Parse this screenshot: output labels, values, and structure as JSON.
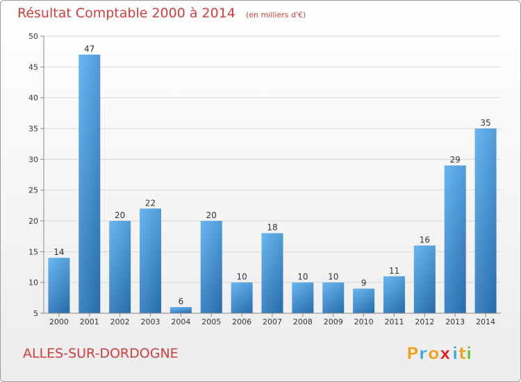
{
  "chart_data": {
    "type": "bar",
    "title": "Résultat Comptable 2000 à 2014",
    "subtitle": "(en milliers d'€)",
    "categories": [
      "2000",
      "2001",
      "2002",
      "2003",
      "2004",
      "2005",
      "2006",
      "2007",
      "2008",
      "2009",
      "2010",
      "2011",
      "2012",
      "2013",
      "2014"
    ],
    "values": [
      14,
      47,
      20,
      22,
      6,
      20,
      10,
      18,
      10,
      10,
      9,
      11,
      16,
      29,
      35
    ],
    "value_labels": [
      "14",
      "47",
      "20",
      "22",
      "6",
      "20",
      "10",
      "18",
      "10",
      "10",
      "9",
      "11",
      "16",
      "29",
      "35"
    ],
    "ylim": [
      5,
      50
    ],
    "yticks": [
      5,
      10,
      15,
      20,
      25,
      30,
      35,
      40,
      45,
      50
    ],
    "ytick_labels": [
      "5",
      "10",
      "15",
      "20",
      "25",
      "30",
      "35",
      "40",
      "45",
      "50"
    ],
    "xlabel": "",
    "ylabel": "",
    "grid": true,
    "bar_color": "#3d8fd6"
  },
  "commune": "ALLES-SUR-DORDOGNE",
  "logo": {
    "letters": [
      "P",
      "r",
      "o",
      "x",
      "i",
      "t",
      "i"
    ],
    "colors": [
      "#f0a020",
      "#3aa8e0",
      "#f0a020",
      "#e02020",
      "#3aa8e0",
      "#f0a020",
      "#6cc040"
    ]
  }
}
